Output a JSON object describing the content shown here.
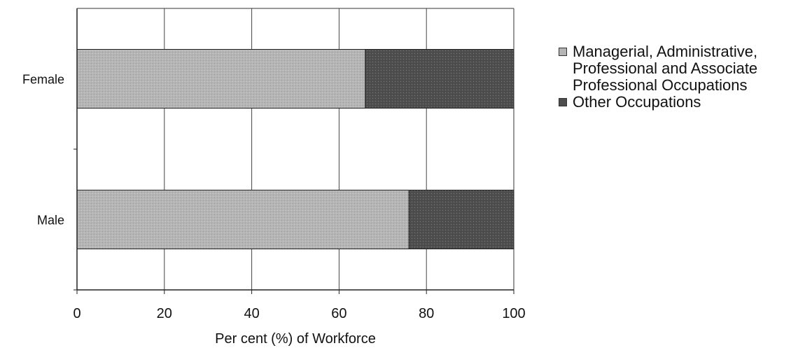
{
  "chart_data": {
    "type": "bar",
    "orientation": "horizontal",
    "stacked": true,
    "categories": [
      "Female",
      "Male"
    ],
    "series": [
      {
        "name": "Managerial, Administrative, Professional and Associate Professional Occupations",
        "values": [
          66,
          76
        ]
      },
      {
        "name": "Other Occupations",
        "values": [
          34,
          24
        ]
      }
    ],
    "xlabel": "Per cent (%) of Workforce",
    "ylabel": "",
    "xlim": [
      0,
      100
    ],
    "xticks": [
      0,
      20,
      40,
      60,
      80,
      100
    ],
    "grid": true,
    "legend_position": "right",
    "colors": [
      "#b5b5b5",
      "#4e4e4e"
    ]
  }
}
